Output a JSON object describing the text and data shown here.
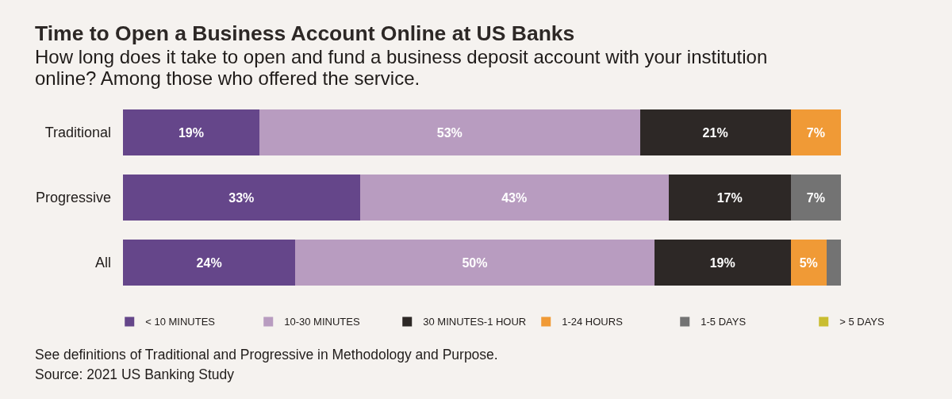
{
  "chart_data": {
    "type": "bar",
    "orientation": "horizontal",
    "stacked": true,
    "title": "Time to Open a Business Account Online at US Banks",
    "subtitle": "How long does it take to open and fund a business deposit account with your institution online? Among those who offered the service.",
    "categories": [
      "Traditional",
      "Progressive",
      "All"
    ],
    "series": [
      {
        "name": "< 10 MINUTES",
        "color": "#65468a",
        "values": [
          19,
          33,
          24
        ],
        "value_labels": [
          "19%",
          "33%",
          "24%"
        ]
      },
      {
        "name": "10-30 MINUTES",
        "color": "#b89cc0",
        "values": [
          53,
          43,
          50
        ],
        "value_labels": [
          "53%",
          "43%",
          "50%"
        ]
      },
      {
        "name": "30 MINUTES-1 HOUR",
        "color": "#2d2826",
        "values": [
          21,
          17,
          19
        ],
        "value_labels": [
          "21%",
          "17%",
          "19%"
        ]
      },
      {
        "name": "1-24 HOURS",
        "color": "#f09a36",
        "values": [
          7,
          null,
          5
        ],
        "value_labels": [
          "7%",
          null,
          "5%"
        ]
      },
      {
        "name": "1-5 DAYS",
        "color": "#737373",
        "values": [
          null,
          7,
          2
        ],
        "value_labels": [
          null,
          "7%",
          null
        ]
      },
      {
        "name": "> 5 DAYS",
        "color": "#c9bd30",
        "values": [
          null,
          null,
          null
        ]
      }
    ],
    "xlim": [
      0,
      100
    ],
    "tick_labels": "y",
    "legend": "bottom",
    "annotations": [
      "See definitions of Traditional and Progressive in Methodology and Purpose.",
      "Source: 2021 US Banking Study"
    ]
  }
}
